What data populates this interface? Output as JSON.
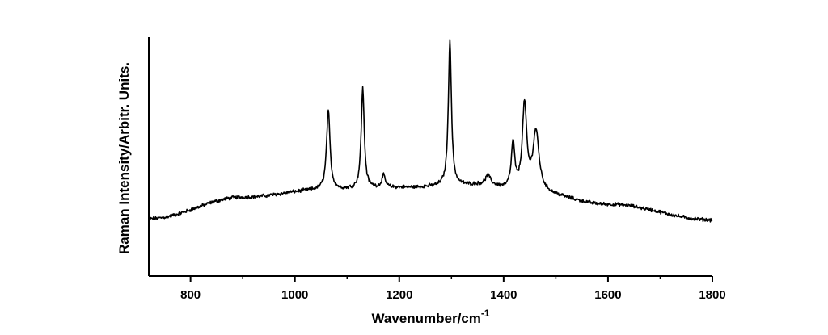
{
  "chart_data": {
    "type": "line",
    "title": "",
    "xlabel": "Wavenumber/cm",
    "xlabel_superscript": "-1",
    "ylabel": "Raman Intensity/Arbitr. Units.",
    "xlim": [
      720,
      1800
    ],
    "ylim": [
      0,
      1
    ],
    "y_tick_labels": false,
    "grid": false,
    "legend": "none",
    "x_ticks": [
      800,
      1000,
      1200,
      1400,
      1600,
      1800
    ],
    "x_tick_labels": [
      "800",
      "1000",
      "1200",
      "1400",
      "1600",
      "1800"
    ],
    "series": [
      {
        "color": "#000000",
        "baseline": [
          [
            720,
            0.24
          ],
          [
            900,
            0.33
          ],
          [
            1050,
            0.36
          ],
          [
            1200,
            0.37
          ],
          [
            1350,
            0.38
          ],
          [
            1450,
            0.35
          ],
          [
            1600,
            0.3
          ],
          [
            1800,
            0.235
          ]
        ],
        "peaks": [
          {
            "center": 1064,
            "height": 0.33,
            "width": 4
          },
          {
            "center": 1130,
            "height": 0.42,
            "width": 3.5
          },
          {
            "center": 1170,
            "height": 0.05,
            "width": 4
          },
          {
            "center": 1297,
            "height": 0.61,
            "width": 3.5
          },
          {
            "center": 1370,
            "height": 0.04,
            "width": 6
          },
          {
            "center": 1418,
            "height": 0.19,
            "width": 4
          },
          {
            "center": 1440,
            "height": 0.36,
            "width": 5
          },
          {
            "center": 1462,
            "height": 0.25,
            "width": 7
          }
        ],
        "noise": 0.006
      }
    ]
  }
}
